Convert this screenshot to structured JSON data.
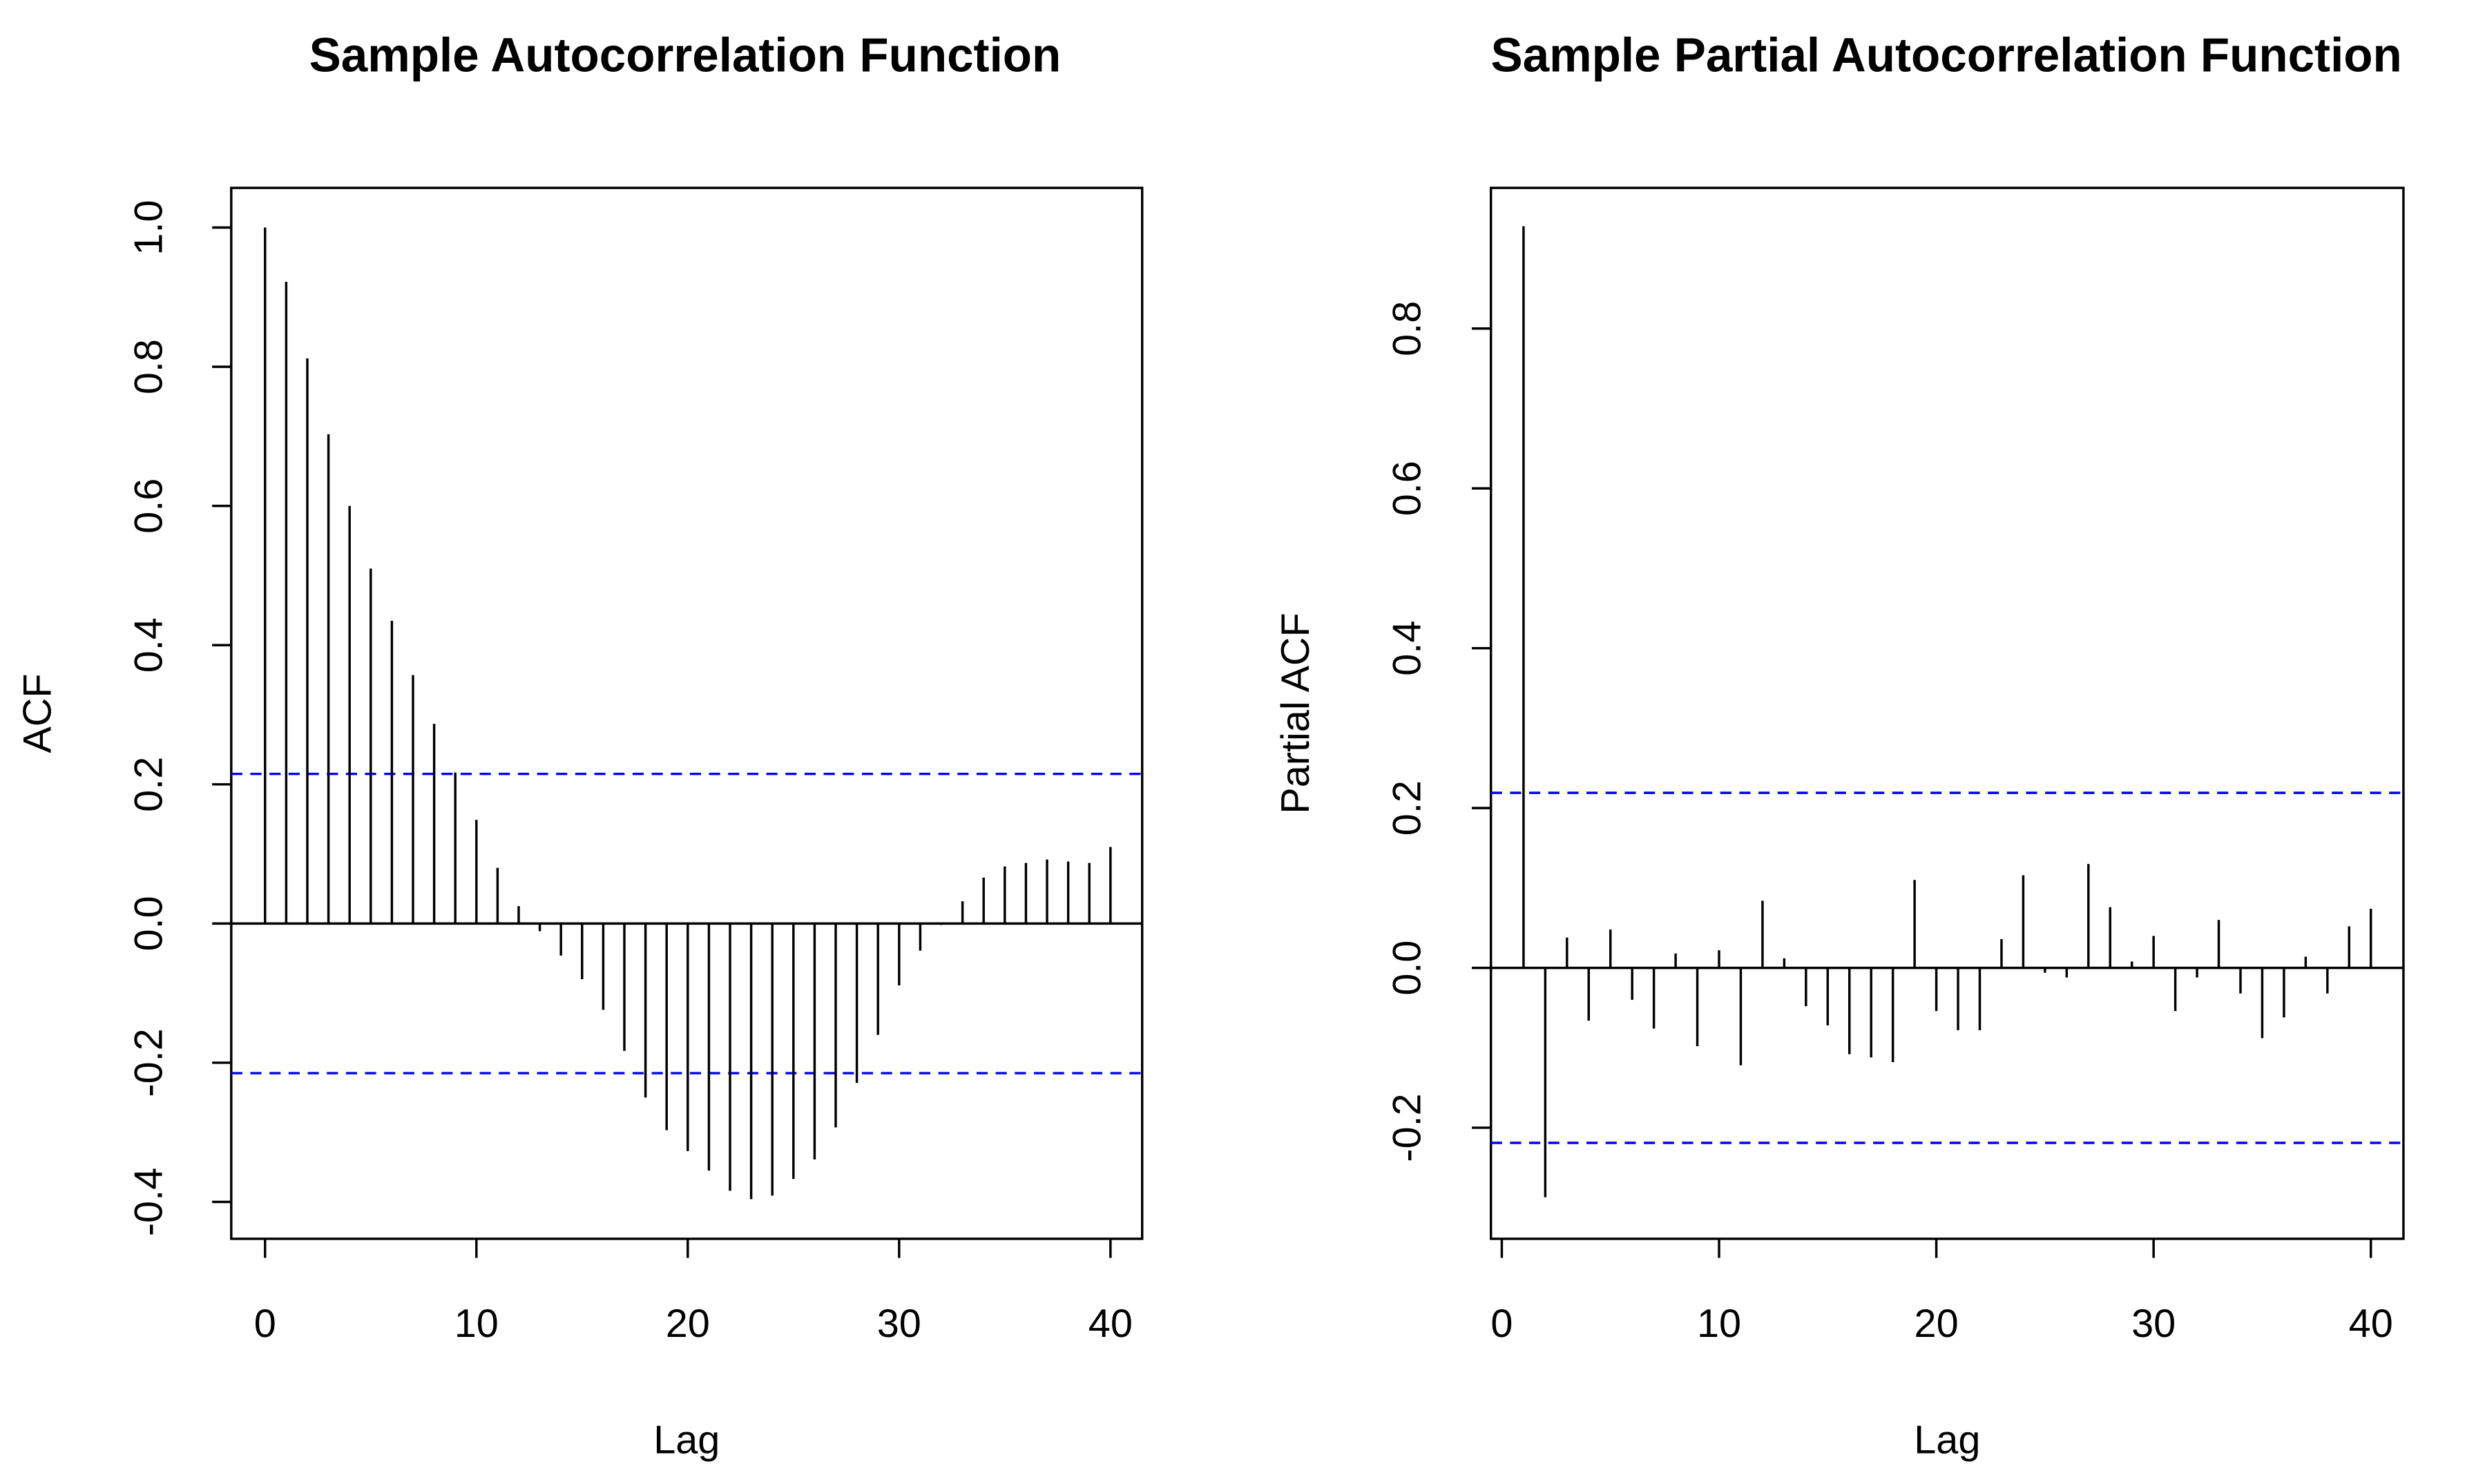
{
  "chart_data": [
    {
      "type": "stem",
      "title": "Sample Autocorrelation Function",
      "x_label": "Lag",
      "y_label": "ACF",
      "x": [
        0,
        1,
        2,
        3,
        4,
        5,
        6,
        7,
        8,
        9,
        10,
        11,
        12,
        13,
        14,
        15,
        16,
        17,
        18,
        19,
        20,
        21,
        22,
        23,
        24,
        25,
        26,
        27,
        28,
        29,
        30,
        31,
        32,
        33,
        34,
        35,
        36,
        37,
        38,
        39,
        40
      ],
      "values": [
        1.0,
        0.922,
        0.812,
        0.703,
        0.6,
        0.51,
        0.435,
        0.357,
        0.287,
        0.217,
        0.149,
        0.08,
        0.025,
        -0.011,
        -0.046,
        -0.08,
        -0.124,
        -0.183,
        -0.25,
        -0.297,
        -0.327,
        -0.355,
        -0.384,
        -0.396,
        -0.391,
        -0.367,
        -0.339,
        -0.293,
        -0.229,
        -0.16,
        -0.089,
        -0.039,
        -0.002,
        0.032,
        0.066,
        0.082,
        0.087,
        0.092,
        0.089,
        0.087,
        0.11
      ],
      "color": "#000000",
      "ci_lines": [
        0.215,
        -0.215
      ],
      "ci_color": "#0000ff",
      "xlim": [
        -1.6,
        41.5
      ],
      "ylim": [
        -0.453,
        1.057
      ],
      "xticks": [
        0,
        10,
        20,
        30,
        40
      ],
      "yticks": [
        -0.4,
        -0.2,
        {
          "value": 0,
          "label": "0.0"
        },
        0.2,
        0.4,
        0.6,
        0.8,
        {
          "value": 1,
          "label": "1.0"
        }
      ]
    },
    {
      "type": "stem",
      "title": "Sample Partial Autocorrelation Function",
      "x_label": "Lag",
      "y_label": "Partial ACF",
      "x": [
        1,
        2,
        3,
        4,
        5,
        6,
        7,
        8,
        9,
        10,
        11,
        12,
        13,
        14,
        15,
        16,
        17,
        18,
        19,
        20,
        21,
        22,
        23,
        24,
        25,
        26,
        27,
        28,
        29,
        30,
        31,
        32,
        33,
        34,
        35,
        36,
        37,
        38,
        39,
        40
      ],
      "values": [
        0.928,
        -0.287,
        0.038,
        -0.066,
        0.048,
        -0.04,
        -0.076,
        0.018,
        -0.098,
        0.022,
        -0.122,
        0.084,
        0.012,
        -0.048,
        -0.072,
        -0.108,
        -0.112,
        -0.118,
        0.11,
        -0.054,
        -0.078,
        -0.078,
        0.036,
        0.116,
        -0.006,
        -0.012,
        0.13,
        0.076,
        0.008,
        0.04,
        -0.054,
        -0.012,
        0.06,
        -0.032,
        -0.088,
        -0.062,
        0.014,
        -0.032,
        0.052,
        0.074
      ],
      "color": "#000000",
      "ci_lines": [
        0.219,
        -0.219
      ],
      "ci_color": "#0000ff",
      "xlim": [
        -0.5,
        41.5
      ],
      "ylim": [
        -0.339,
        0.976
      ],
      "xticks": [
        0,
        10,
        20,
        30,
        40
      ],
      "yticks": [
        -0.2,
        {
          "value": 0,
          "label": "0.0"
        },
        0.2,
        0.4,
        0.6,
        0.8
      ]
    }
  ]
}
